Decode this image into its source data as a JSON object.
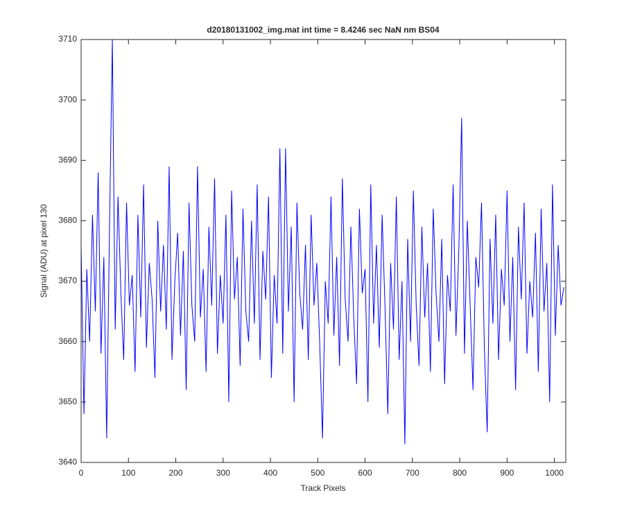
{
  "chart_data": {
    "type": "line",
    "title": "d20180131002_img.mat int time = 8.4246 sec  NaN nm BS04",
    "x_label": "Track Pixels",
    "y_label": "Signal (ADU) at pixel 130",
    "x": [
      0,
      6,
      12,
      18,
      24,
      30,
      36,
      42,
      48,
      54,
      60,
      66,
      72,
      78,
      84,
      90,
      96,
      102,
      108,
      114,
      120,
      126,
      132,
      138,
      144,
      150,
      156,
      162,
      168,
      174,
      180,
      186,
      192,
      198,
      204,
      210,
      216,
      222,
      228,
      234,
      240,
      246,
      252,
      258,
      264,
      270,
      276,
      282,
      288,
      294,
      300,
      306,
      312,
      318,
      324,
      330,
      336,
      342,
      348,
      354,
      360,
      366,
      372,
      378,
      384,
      390,
      396,
      402,
      408,
      414,
      420,
      426,
      432,
      438,
      444,
      450,
      456,
      462,
      468,
      474,
      480,
      486,
      492,
      498,
      504,
      510,
      516,
      522,
      528,
      534,
      540,
      546,
      552,
      558,
      564,
      570,
      576,
      582,
      588,
      594,
      600,
      606,
      612,
      618,
      624,
      630,
      636,
      642,
      648,
      654,
      660,
      666,
      672,
      678,
      684,
      690,
      696,
      702,
      708,
      714,
      720,
      726,
      732,
      738,
      744,
      750,
      756,
      762,
      768,
      774,
      780,
      786,
      792,
      798,
      804,
      810,
      816,
      822,
      828,
      834,
      840,
      846,
      852,
      858,
      864,
      870,
      876,
      882,
      888,
      894,
      900,
      906,
      912,
      918,
      924,
      930,
      936,
      942,
      948,
      954,
      960,
      966,
      972,
      978,
      984,
      990,
      996,
      1002,
      1008,
      1014,
      1020
    ],
    "series": [
      {
        "color": "#0000ff",
        "values": [
          3676,
          3648,
          3672,
          3660,
          3681,
          3665,
          3688,
          3658,
          3674,
          3644,
          3679,
          3710,
          3662,
          3684,
          3668,
          3657,
          3683,
          3666,
          3671,
          3655,
          3681,
          3664,
          3686,
          3659,
          3673,
          3667,
          3654,
          3680,
          3665,
          3676,
          3662,
          3689,
          3657,
          3670,
          3678,
          3661,
          3675,
          3652,
          3683,
          3666,
          3660,
          3689,
          3664,
          3672,
          3655,
          3679,
          3666,
          3687,
          3658,
          3671,
          3663,
          3681,
          3650,
          3685,
          3667,
          3674,
          3656,
          3682,
          3665,
          3660,
          3680,
          3663,
          3686,
          3657,
          3675,
          3667,
          3684,
          3654,
          3671,
          3663,
          3692,
          3658,
          3692,
          3665,
          3679,
          3650,
          3683,
          3668,
          3662,
          3676,
          3657,
          3681,
          3666,
          3673,
          3660,
          3644,
          3670,
          3663,
          3684,
          3661,
          3674,
          3656,
          3687,
          3667,
          3660,
          3679,
          3664,
          3653,
          3682,
          3668,
          3672,
          3650,
          3686,
          3663,
          3676,
          3659,
          3681,
          3666,
          3648,
          3673,
          3662,
          3684,
          3657,
          3670,
          3643,
          3677,
          3660,
          3685,
          3666,
          3656,
          3679,
          3664,
          3673,
          3655,
          3682,
          3668,
          3660,
          3677,
          3653,
          3671,
          3665,
          3686,
          3661,
          3675,
          3697,
          3658,
          3680,
          3666,
          3652,
          3674,
          3669,
          3683,
          3659,
          3645,
          3677,
          3663,
          3681,
          3657,
          3672,
          3666,
          3685,
          3660,
          3674,
          3652,
          3679,
          3667,
          3683,
          3658,
          3670,
          3664,
          3678,
          3655,
          3682,
          3665,
          3673,
          3650,
          3686,
          3661,
          3676,
          3666,
          3669
        ]
      }
    ],
    "xlim": [
      0,
      1024
    ],
    "ylim": [
      3640,
      3710
    ],
    "xticks": [
      0,
      100,
      200,
      300,
      400,
      500,
      600,
      700,
      800,
      900,
      1000
    ],
    "yticks": [
      3640,
      3650,
      3660,
      3670,
      3680,
      3690,
      3700,
      3710
    ]
  }
}
